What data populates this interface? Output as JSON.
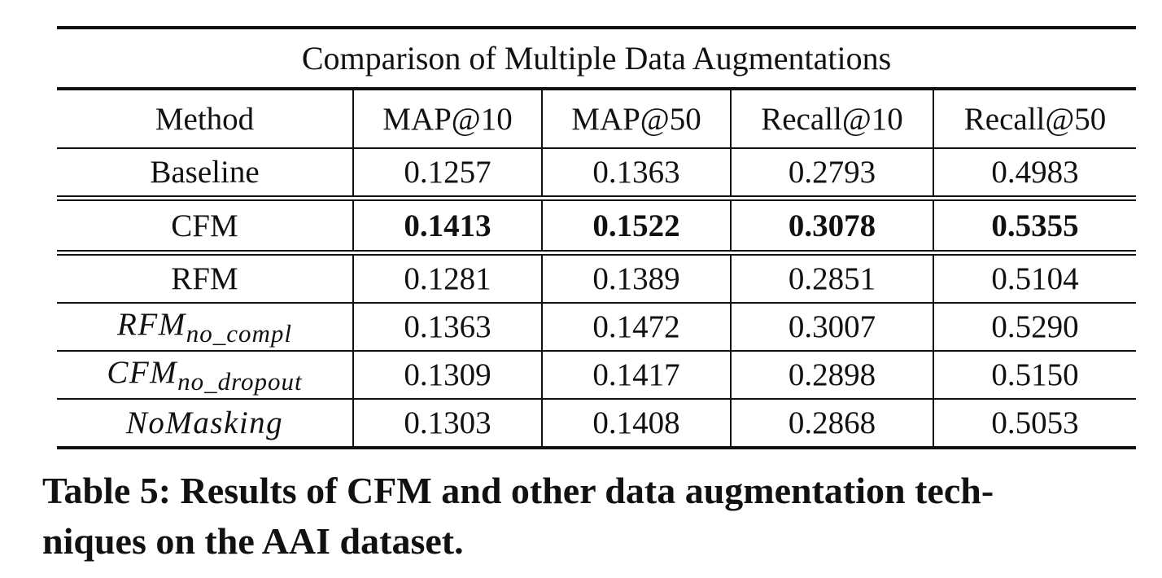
{
  "table": {
    "title": "Comparison of Multiple Data Augmentations",
    "headers": [
      "Method",
      "MAP@10",
      "MAP@50",
      "Recall@10",
      "Recall@50"
    ],
    "rows": [
      {
        "method": "Baseline",
        "values": [
          "0.1257",
          "0.1363",
          "0.2793",
          "0.4983"
        ]
      },
      {
        "method": "CFM",
        "values": [
          "0.1413",
          "0.1522",
          "0.3078",
          "0.5355"
        ]
      },
      {
        "method": "RFM",
        "values": [
          "0.1281",
          "0.1389",
          "0.2851",
          "0.5104"
        ]
      },
      {
        "method": "RFM",
        "method_sub": "no_compl",
        "values": [
          "0.1363",
          "0.1472",
          "0.3007",
          "0.5290"
        ]
      },
      {
        "method": "CFM",
        "method_sub": "no_dropout",
        "values": [
          "0.1309",
          "0.1417",
          "0.2898",
          "0.5150"
        ]
      },
      {
        "method": "NoMasking",
        "values": [
          "0.1303",
          "0.1408",
          "0.2868",
          "0.5053"
        ]
      }
    ]
  },
  "caption": {
    "line1": "Table 5: Results of CFM and other data augmentation tech-",
    "line2": "niques on the AAI dataset."
  }
}
